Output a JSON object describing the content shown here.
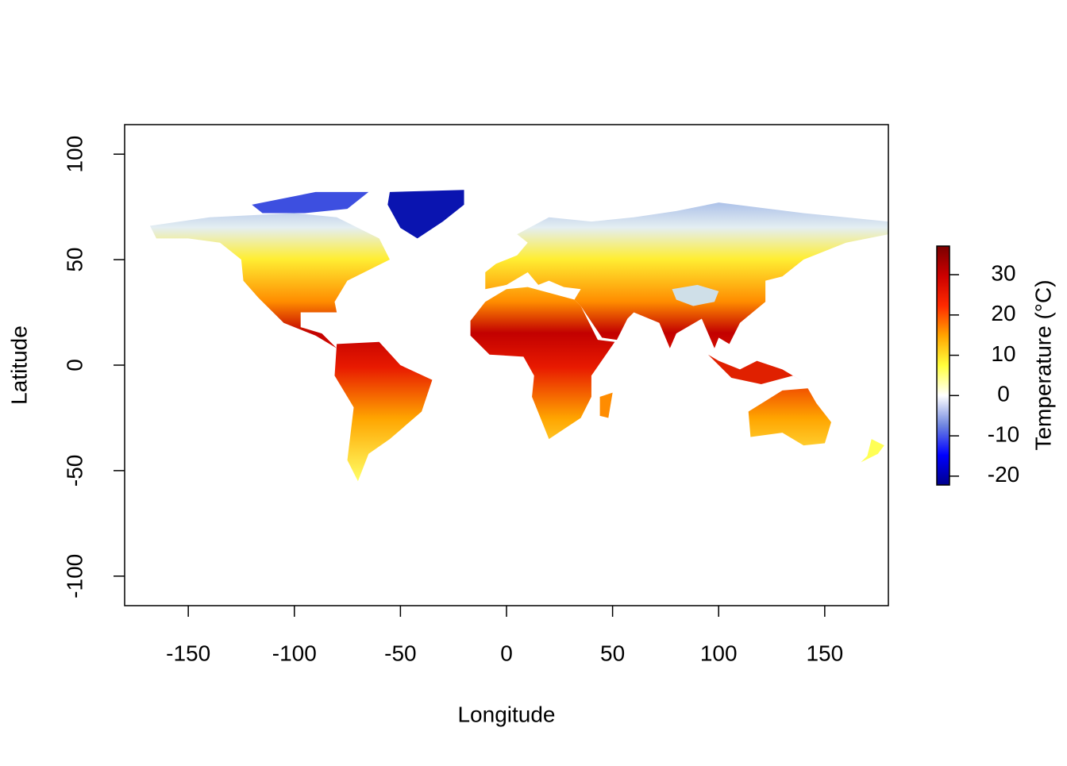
{
  "chart_data": {
    "type": "raster",
    "xlabel": "Longitude",
    "ylabel": "Latitude",
    "xlim": [
      -180,
      180
    ],
    "ylim": [
      -114,
      114
    ],
    "xticks": [
      -150,
      -100,
      -50,
      0,
      50,
      100,
      150
    ],
    "yticks": [
      -100,
      -50,
      0,
      50,
      100
    ],
    "colorbar": {
      "title": "Temperature (°C)",
      "lim": [
        -22.2,
        37.1
      ],
      "ticks": [
        -20,
        -10,
        0,
        10,
        20,
        30
      ],
      "colors": [
        "#00008b",
        "#0000ff",
        "#6f86e0",
        "#ffffff",
        "#ffff3c",
        "#ffa500",
        "#ff2a00",
        "#cc0000",
        "#7a0000"
      ]
    }
  }
}
